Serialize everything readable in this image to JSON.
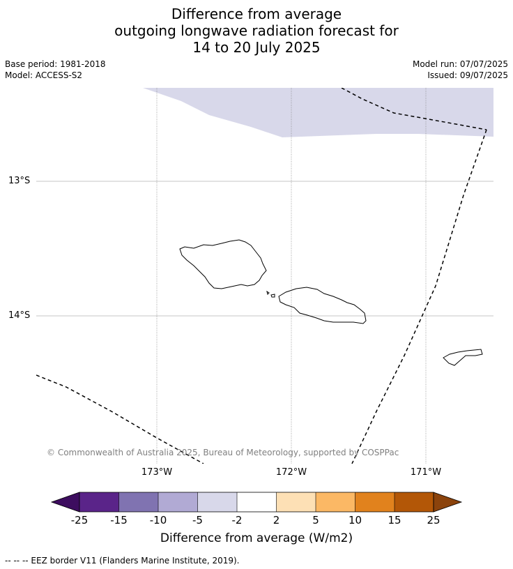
{
  "title": {
    "line1": "Difference from average",
    "line2": "outgoing longwave radiation forecast for",
    "line3": "14 to 20 July 2025"
  },
  "meta": {
    "base_period": "Base period: 1981-2018",
    "model": "Model: ACCESS-S2",
    "model_run": "Model run: 07/07/2025",
    "issued": "Issued: 09/07/2025"
  },
  "map": {
    "lat_labels": [
      "13°S",
      "14°S"
    ],
    "lon_labels": [
      "173°W",
      "172°W",
      "171°W"
    ],
    "copyright": "© Commonwealth of Australia 2025, Bureau of Meteorology, supported by COSPPac",
    "shade_color": "#d8d8ea"
  },
  "colorbar": {
    "ticks": [
      "-25",
      "-15",
      "-10",
      "-5",
      "-2",
      "2",
      "5",
      "10",
      "15",
      "25"
    ],
    "colors": [
      "#5a2489",
      "#8073b1",
      "#b1aad4",
      "#d8d8ea",
      "#ffffff",
      "#fde0b5",
      "#fbb865",
      "#e1821d",
      "#b35707"
    ],
    "under_color": "#3d0d5f",
    "over_color": "#8b430c",
    "label": "Difference from average (W/m2)"
  },
  "footnote": "-- -- -- EEZ border V11 (Flanders Marine Institute, 2019)."
}
